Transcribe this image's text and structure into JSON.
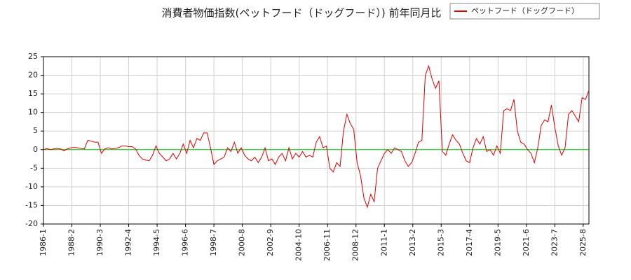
{
  "chart_data": {
    "type": "line",
    "title": "消費者物価指数(ペットフード（ドッグフード）) 前年同月比",
    "x": [
      "1986-1",
      "1986-4",
      "1986-7",
      "1986-10",
      "1987-1",
      "1987-4",
      "1987-7",
      "1987-10",
      "1988-1",
      "1988-4",
      "1988-7",
      "1988-10",
      "1989-1",
      "1989-4",
      "1989-7",
      "1989-10",
      "1990-1",
      "1990-4",
      "1990-7",
      "1990-10",
      "1991-1",
      "1991-4",
      "1991-7",
      "1991-10",
      "1992-1",
      "1992-4",
      "1992-7",
      "1992-10",
      "1993-1",
      "1993-4",
      "1993-7",
      "1993-10",
      "1994-1",
      "1994-4",
      "1994-7",
      "1994-10",
      "1995-1",
      "1995-4",
      "1995-7",
      "1995-10",
      "1996-1",
      "1996-4",
      "1996-7",
      "1996-10",
      "1997-1",
      "1997-4",
      "1997-7",
      "1997-10",
      "1998-1",
      "1998-4",
      "1998-7",
      "1998-10",
      "1999-1",
      "1999-4",
      "1999-7",
      "1999-10",
      "2000-1",
      "2000-4",
      "2000-7",
      "2000-10",
      "2001-1",
      "2001-4",
      "2001-7",
      "2001-10",
      "2002-1",
      "2002-4",
      "2002-7",
      "2002-10",
      "2003-1",
      "2003-4",
      "2003-7",
      "2003-10",
      "2004-1",
      "2004-4",
      "2004-7",
      "2004-10",
      "2005-1",
      "2005-4",
      "2005-7",
      "2005-10",
      "2006-1",
      "2006-4",
      "2006-7",
      "2006-10",
      "2007-1",
      "2007-4",
      "2007-7",
      "2007-10",
      "2008-1",
      "2008-4",
      "2008-7",
      "2008-10",
      "2009-1",
      "2009-4",
      "2009-7",
      "2009-10",
      "2010-1",
      "2010-4",
      "2010-7",
      "2010-10",
      "2011-1",
      "2011-4",
      "2011-7",
      "2011-10",
      "2012-1",
      "2012-4",
      "2012-7",
      "2012-10",
      "2013-1",
      "2013-4",
      "2013-7",
      "2013-10",
      "2014-1",
      "2014-4",
      "2014-7",
      "2014-10",
      "2015-1",
      "2015-4",
      "2015-7",
      "2015-10",
      "2016-1",
      "2016-4",
      "2016-7",
      "2016-10",
      "2017-1",
      "2017-4",
      "2017-7",
      "2017-10",
      "2018-1",
      "2018-4",
      "2018-7",
      "2018-10",
      "2019-1",
      "2019-4",
      "2019-7",
      "2019-10",
      "2020-1",
      "2020-4",
      "2020-7",
      "2020-10",
      "2021-1",
      "2021-4",
      "2021-7",
      "2021-10",
      "2022-1",
      "2022-4",
      "2022-7",
      "2022-10",
      "2023-1",
      "2023-4",
      "2023-7",
      "2023-10",
      "2024-1",
      "2024-4",
      "2024-7",
      "2024-10",
      "2025-1",
      "2025-4",
      "2025-7",
      "2025-10",
      "2026-1"
    ],
    "series": [
      {
        "name": "ペットフード（ドッグフード）",
        "color": "#dd0000",
        "values": [
          0,
          0.3,
          0,
          0.2,
          0.3,
          0.2,
          -0.3,
          0.2,
          0.5,
          0.6,
          0.5,
          0.3,
          0.2,
          2.5,
          2.3,
          2.0,
          2.0,
          -1.0,
          0.2,
          0.5,
          0.2,
          0.3,
          0.5,
          1.0,
          1.0,
          0.8,
          0.8,
          0.2,
          -1.5,
          -2.5,
          -2.8,
          -3.0,
          -1.5,
          1.0,
          -1.0,
          -2.0,
          -3.0,
          -2.5,
          -1.0,
          -2.5,
          -1.0,
          1.5,
          -1.0,
          2.5,
          0.5,
          3.0,
          2.5,
          4.5,
          4.5,
          0.5,
          -4.0,
          -3.0,
          -2.5,
          -2.0,
          0.5,
          -0.5,
          2.0,
          -1.0,
          0.5,
          -1.5,
          -2.5,
          -3.0,
          -2.0,
          -3.5,
          -2.0,
          0.5,
          -3.0,
          -2.5,
          -4.0,
          -2.0,
          -1.0,
          -3.0,
          0.5,
          -2.5,
          -1.0,
          -2.0,
          -0.5,
          -2.0,
          -1.5,
          -2.0,
          2.0,
          3.5,
          0.5,
          1.0,
          -5.0,
          -6.0,
          -3.5,
          -4.5,
          5.0,
          9.5,
          7.0,
          5.5,
          -3.5,
          -7.0,
          -13.0,
          -15.5,
          -12.0,
          -14.0,
          -5.0,
          -3.0,
          -1.0,
          0.0,
          -1.0,
          0.5,
          0.0,
          -0.5,
          -3.0,
          -4.5,
          -3.5,
          -1.0,
          2.0,
          2.5,
          20.0,
          22.5,
          19.0,
          16.5,
          18.5,
          -0.5,
          -1.5,
          1.5,
          4.0,
          2.5,
          1.5,
          -1.0,
          -3.0,
          -3.5,
          0.5,
          3.0,
          1.5,
          3.5,
          -0.5,
          0.0,
          -1.5,
          1.0,
          -1.0,
          10.5,
          11.0,
          10.5,
          13.5,
          5.0,
          2.0,
          1.5,
          0.0,
          -1.0,
          -3.5,
          0.5,
          6.5,
          8.0,
          7.5,
          12.0,
          6.0,
          1.0,
          -1.5,
          0.5,
          9.5,
          10.5,
          9.0,
          7.5,
          14.0,
          13.5,
          16.0
        ]
      }
    ],
    "xlim": [
      "1986-1",
      "2026-1"
    ],
    "xticks": [
      "1986-1",
      "1988-2",
      "1990-3",
      "1992-4",
      "1994-5",
      "1996-6",
      "1998-7",
      "2000-8",
      "2002-9",
      "2004-10",
      "2006-11",
      "2008-12",
      "2011-1",
      "2013-2",
      "2015-3",
      "2017-4",
      "2019-5",
      "2021-6",
      "2023-7",
      "2025-8"
    ],
    "ylim": [
      -20,
      25
    ],
    "yticks": [
      -20,
      -15,
      -10,
      -5,
      0,
      5,
      10,
      15,
      20,
      25
    ],
    "grid": true,
    "hline": {
      "value": 0,
      "color": "#00cc00"
    },
    "legend": "upper-right"
  }
}
